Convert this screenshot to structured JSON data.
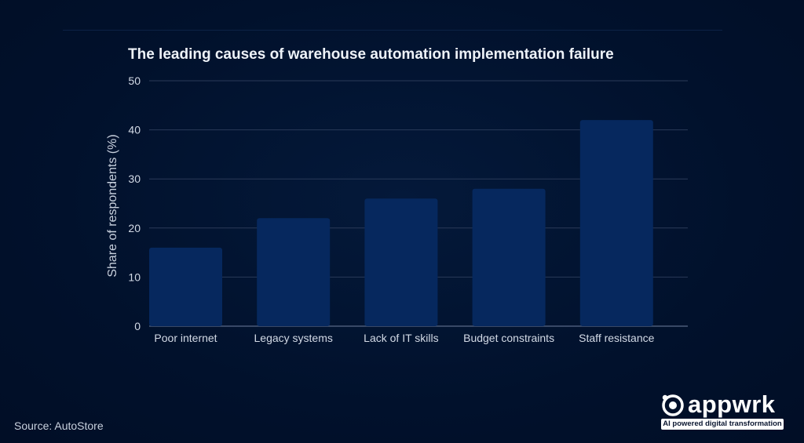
{
  "chart_data": {
    "type": "bar",
    "title": "The leading causes of warehouse automation implementation failure",
    "categories": [
      "Poor internet",
      "Legacy systems",
      "Lack of IT skills",
      "Budget constraints",
      "Staff resistance"
    ],
    "values": [
      16,
      22,
      26,
      28,
      42
    ],
    "xlabel": "",
    "ylabel": "Share of respondents (%)",
    "ylim": [
      0,
      50
    ],
    "yticks": [
      0,
      10,
      20,
      30,
      40,
      50
    ],
    "grid": true,
    "bar_color": "#06285e"
  },
  "footer": {
    "source": "Source: AutoStore"
  },
  "brand": {
    "name": "appwrk",
    "tagline": "AI powered digital transformation"
  }
}
